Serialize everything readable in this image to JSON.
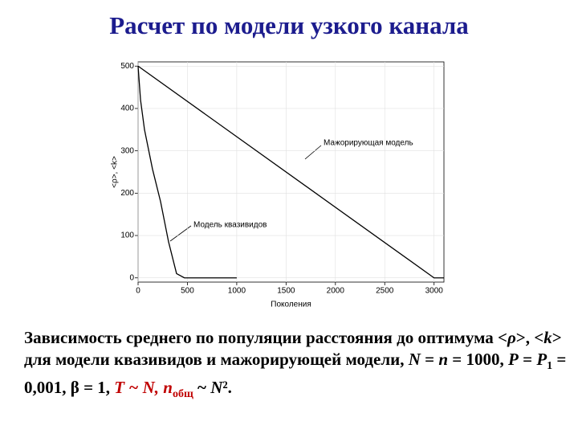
{
  "chart_data": {
    "type": "line",
    "title": "Расчет по модели узкого канала",
    "ylabel": "<ρ>, <k>",
    "xlabel": "Поколения",
    "xlim": [
      0,
      3100
    ],
    "ylim": [
      -10,
      510
    ],
    "xticks": [
      0,
      500,
      1000,
      1500,
      2000,
      2500,
      3000
    ],
    "yticks": [
      0,
      100,
      200,
      300,
      400,
      500
    ],
    "series": [
      {
        "name": "Мажорирующая модель",
        "color": "#000000",
        "x": [
          0,
          3000,
          3100
        ],
        "values": [
          500,
          0,
          0
        ]
      },
      {
        "name": "Модель квазивидов",
        "color": "#000000",
        "x": [
          0,
          25,
          65,
          146,
          228,
          309,
          390,
          470,
          1000
        ],
        "values": [
          500,
          420,
          350,
          257,
          180,
          85,
          10,
          0,
          0
        ]
      }
    ],
    "caption": [
      "Зависимость среднего по популяции расстояния до оптимума <",
      "ρ",
      ">, <",
      "k",
      "> для модели квазивидов и мажорирующей модели, ",
      "N",
      " = ",
      "n",
      " = 1000, ",
      "P",
      " = ",
      "P",
      "1",
      " = 0,001, ",
      "β",
      " = 1, ",
      "T ~ N, n",
      "общ",
      " ~ ",
      "N",
      "²",
      "."
    ]
  }
}
